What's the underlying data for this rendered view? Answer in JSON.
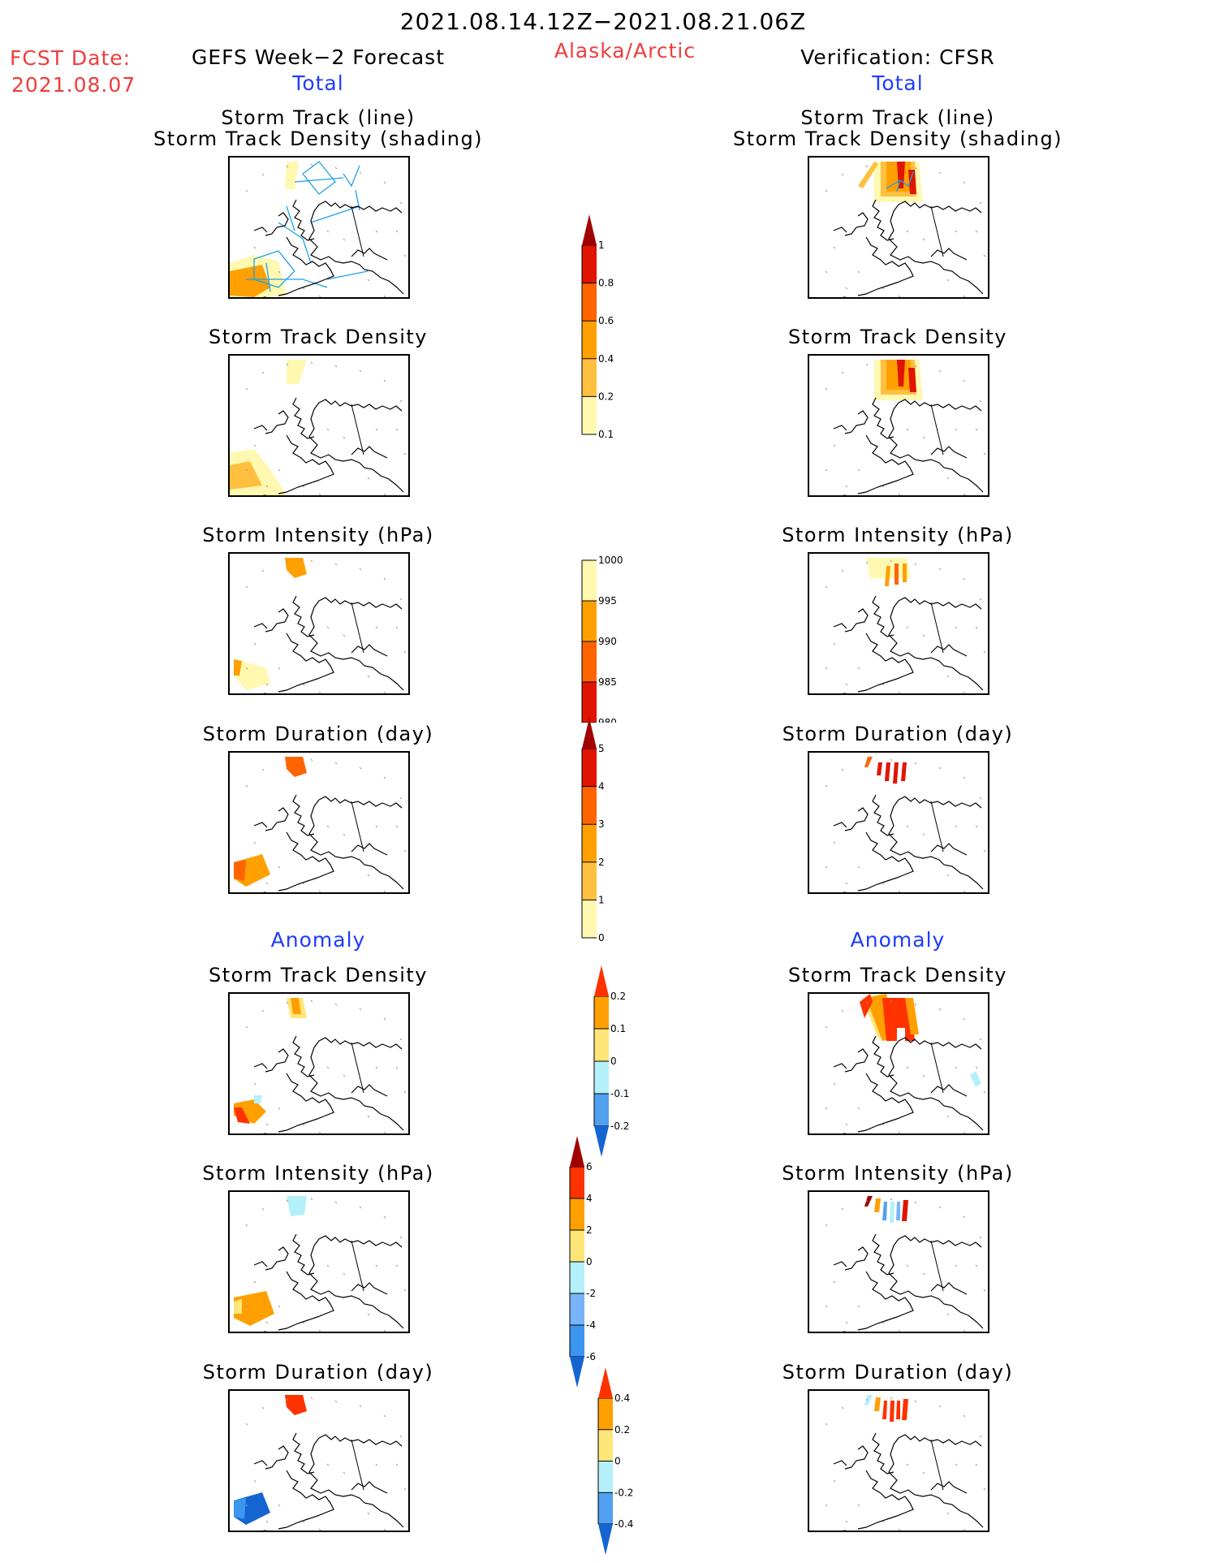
{
  "header": {
    "period": "2021.08.14.12Z−2021.08.21.06Z",
    "fcst_label": "FCST Date:",
    "fcst_date": "2021.08.07",
    "region": "Alaska/Arctic",
    "left_title": "GEFS Week−2 Forecast",
    "right_title": "Verification: CFSR",
    "section_total": "Total",
    "section_anomaly": "Anomaly"
  },
  "panels": {
    "track_line_title1": "Storm Track (line)",
    "track_line_title2": "Storm Track Density (shading)",
    "density": "Storm Track Density",
    "intensity": "Storm Intensity (hPa)",
    "duration": "Storm Duration (day)"
  },
  "colors": {
    "track_line": "#1ea0e6",
    "map_border": "#000000"
  },
  "chart_data": [
    {
      "type": "heatmap",
      "name": "density-total-colorbar",
      "ticks": [
        "0.1",
        "0.2",
        "0.4",
        "0.6",
        "0.8",
        "1"
      ],
      "colors": [
        "#fff8b0",
        "#ffc040",
        "#ffa000",
        "#ff6400",
        "#e01400",
        "#a00000"
      ],
      "extend": "max"
    },
    {
      "type": "heatmap",
      "name": "intensity-total-colorbar",
      "ticks": [
        "1000",
        "995",
        "990",
        "985",
        "980"
      ],
      "colors": [
        "#fff8b0",
        "#ffa000",
        "#ff6400",
        "#e01400",
        "#a00000"
      ],
      "extend": "min"
    },
    {
      "type": "heatmap",
      "name": "duration-total-colorbar",
      "ticks": [
        "0",
        "1",
        "2",
        "3",
        "4",
        "5"
      ],
      "colors": [
        "#fff8b0",
        "#ffc040",
        "#ffa000",
        "#ff6400",
        "#e01400",
        "#a00000"
      ],
      "extend": "max"
    },
    {
      "type": "heatmap",
      "name": "density-anomaly-colorbar",
      "ticks": [
        "-0.2",
        "-0.1",
        "0",
        "0.1",
        "0.2"
      ],
      "colors": [
        "#1464d2",
        "#50a0f0",
        "#b4f0fa",
        "#ffe678",
        "#ffa000",
        "#ff3200"
      ],
      "extend": "both"
    },
    {
      "type": "heatmap",
      "name": "intensity-anomaly-colorbar",
      "ticks": [
        "-6",
        "-4",
        "-2",
        "0",
        "2",
        "4",
        "6"
      ],
      "colors": [
        "#1464d2",
        "#3c96f0",
        "#78b4f8",
        "#b4f0fa",
        "#ffe678",
        "#ffa000",
        "#ff3200",
        "#a00000"
      ],
      "extend": "both"
    },
    {
      "type": "heatmap",
      "name": "duration-anomaly-colorbar",
      "ticks": [
        "-0.4",
        "-0.2",
        "0",
        "0.2",
        "0.4"
      ],
      "colors": [
        "#1464d2",
        "#50a0f0",
        "#b4f0fa",
        "#ffe678",
        "#ffa000",
        "#ff3200"
      ],
      "extend": "both"
    }
  ]
}
